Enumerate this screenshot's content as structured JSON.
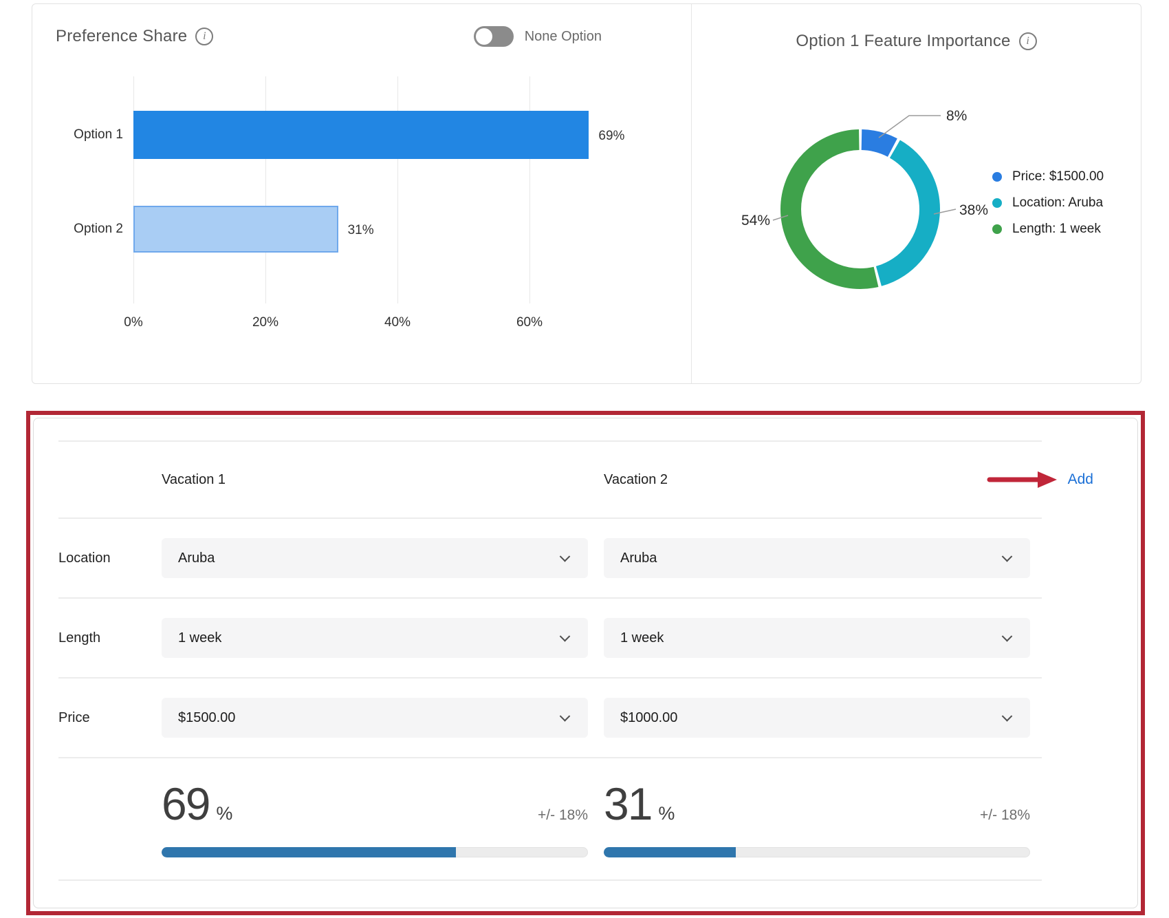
{
  "preference_share": {
    "title": "Preference Share",
    "toggle_label": "None Option",
    "toggle_state": "off",
    "chart_data": {
      "type": "bar",
      "orientation": "horizontal",
      "categories": [
        "Option 1",
        "Option 2"
      ],
      "values": [
        69,
        31
      ],
      "value_labels": [
        "69%",
        "31%"
      ],
      "xticks": [
        "0%",
        "20%",
        "40%",
        "60%"
      ],
      "xlim": [
        0,
        72.9
      ],
      "grid": true,
      "bar_colors": [
        "#2286e3",
        "#a9cdf4"
      ]
    }
  },
  "feature_importance": {
    "title": "Option 1 Feature Importance",
    "chart_data": {
      "type": "pie",
      "donut": true,
      "legend_position": "right",
      "slices": [
        {
          "label": "Price: $1500.00",
          "value": 8,
          "pct_label": "8%",
          "color": "#2a7de1"
        },
        {
          "label": "Location: Aruba",
          "value": 38,
          "pct_label": "38%",
          "color": "#16aec5"
        },
        {
          "label": "Length: 1 week",
          "value": 54,
          "pct_label": "54%",
          "color": "#3fa24b"
        }
      ]
    }
  },
  "editor": {
    "columns": [
      "Vacation 1",
      "Vacation 2"
    ],
    "add_label": "Add",
    "rows": [
      {
        "label": "Location",
        "values": [
          "Aruba",
          "Aruba"
        ]
      },
      {
        "label": "Length",
        "values": [
          "1 week",
          "1 week"
        ]
      },
      {
        "label": "Price",
        "values": [
          "$1500.00",
          "$1000.00"
        ]
      }
    ],
    "results": [
      {
        "value": "69",
        "unit": "%",
        "error": "+/- 18%",
        "pct": 69
      },
      {
        "value": "31",
        "unit": "%",
        "error": "+/- 18%",
        "pct": 31
      }
    ],
    "accent_red": "#b22735",
    "progress_color": "#2f76ad"
  }
}
